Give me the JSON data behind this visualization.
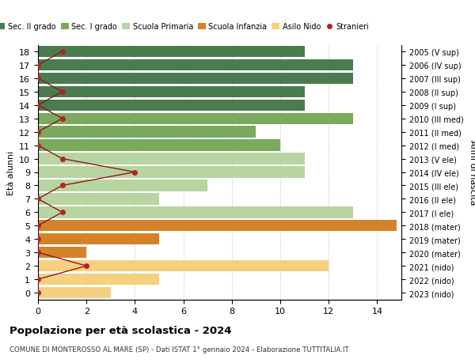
{
  "ages": [
    0,
    1,
    2,
    3,
    4,
    5,
    6,
    7,
    8,
    9,
    10,
    11,
    12,
    13,
    14,
    15,
    16,
    17,
    18
  ],
  "right_labels": [
    "2023 (nido)",
    "2022 (nido)",
    "2021 (nido)",
    "2020 (mater)",
    "2019 (mater)",
    "2018 (mater)",
    "2017 (I ele)",
    "2016 (II ele)",
    "2015 (III ele)",
    "2014 (IV ele)",
    "2013 (V ele)",
    "2012 (I med)",
    "2011 (II med)",
    "2010 (III med)",
    "2009 (I sup)",
    "2008 (II sup)",
    "2007 (III sup)",
    "2006 (IV sup)",
    "2005 (V sup)"
  ],
  "bar_values": [
    3,
    5,
    12,
    2,
    5,
    14.8,
    13,
    5,
    7,
    11,
    11,
    10,
    9,
    13,
    11,
    11,
    13,
    13,
    11
  ],
  "bar_colors": [
    "#f5d080",
    "#f5d080",
    "#f5d080",
    "#d4822a",
    "#d4822a",
    "#d4822a",
    "#b8d4a0",
    "#b8d4a0",
    "#b8d4a0",
    "#b8d4a0",
    "#b8d4a0",
    "#7aaa5e",
    "#7aaa5e",
    "#7aaa5e",
    "#4a7c4e",
    "#4a7c4e",
    "#4a7c4e",
    "#4a7c4e",
    "#4a7c4e"
  ],
  "stranieri_values": [
    0,
    0,
    2,
    0,
    0,
    0,
    1,
    0,
    1,
    4,
    1,
    0,
    0,
    1,
    0,
    1,
    0,
    0,
    1
  ],
  "xlim": [
    0,
    15
  ],
  "xticks": [
    0,
    2,
    4,
    6,
    8,
    10,
    12,
    14
  ],
  "ylabel_left": "Età alunni",
  "ylabel_right": "Anni di nascita",
  "title": "Popolazione per età scolastica - 2024",
  "subtitle": "COMUNE DI MONTEROSSO AL MARE (SP) - Dati ISTAT 1° gennaio 2024 - Elaborazione TUTTITALIA.IT",
  "legend_labels": [
    "Sec. II grado",
    "Sec. I grado",
    "Scuola Primaria",
    "Scuola Infanzia",
    "Asilo Nido",
    "Stranieri"
  ],
  "legend_colors": [
    "#4a7c4e",
    "#7aaa5e",
    "#b8d4a0",
    "#d4822a",
    "#f5d080",
    "#b22222"
  ],
  "bar_height": 0.85,
  "background_color": "#ffffff",
  "grid_color": "#cccccc"
}
